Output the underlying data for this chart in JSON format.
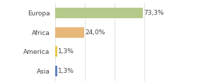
{
  "categories": [
    "Europa",
    "Africa",
    "America",
    "Asia"
  ],
  "values": [
    73.3,
    24.0,
    1.3,
    1.3
  ],
  "labels": [
    "73,3%",
    "24,0%",
    "1,3%",
    "1,3%"
  ],
  "bar_colors": [
    "#b5c98a",
    "#e8b87a",
    "#e8c84a",
    "#6080c0"
  ],
  "background_color": "#ffffff",
  "xlim": [
    0,
    100
  ],
  "bar_height": 0.55,
  "label_fontsize": 6.5,
  "tick_fontsize": 6.5,
  "grid_color": "#d8d8d8",
  "text_color": "#444444"
}
